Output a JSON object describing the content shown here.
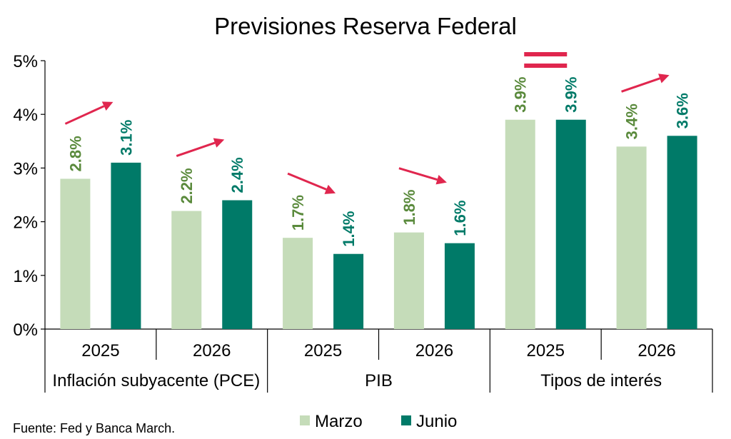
{
  "chart_data": {
    "type": "bar",
    "title": "Previsiones Reserva Federal",
    "ylim": [
      0,
      5
    ],
    "yticks": [
      "0%",
      "1%",
      "2%",
      "3%",
      "4%",
      "5%"
    ],
    "groups": [
      {
        "name": "Inflación subyacente (PCE)",
        "categories": [
          "2025",
          "2026"
        ]
      },
      {
        "name": "PIB",
        "categories": [
          "2025",
          "2026"
        ]
      },
      {
        "name": "Tipos de interés",
        "categories": [
          "2025",
          "2026"
        ]
      }
    ],
    "categories": [
      "2025",
      "2026",
      "2025",
      "2026",
      "2025",
      "2026"
    ],
    "series": [
      {
        "name": "Marzo",
        "color": "#c5dcb9",
        "label_color": "#5a8a3c",
        "values": [
          2.8,
          2.2,
          1.7,
          1.8,
          3.9,
          3.4
        ],
        "labels": [
          "2.8%",
          "2.2%",
          "1.7%",
          "1.8%",
          "3.9%",
          "3.4%"
        ]
      },
      {
        "name": "Junio",
        "color": "#007a68",
        "label_color": "#007a68",
        "values": [
          3.1,
          2.4,
          1.4,
          1.6,
          3.9,
          3.6
        ],
        "labels": [
          "3.1%",
          "2.4%",
          "1.4%",
          "1.6%",
          "3.9%",
          "3.6%"
        ]
      }
    ],
    "annotations": [
      {
        "category_index": 0,
        "symbol": "up-arrow"
      },
      {
        "category_index": 1,
        "symbol": "up-arrow"
      },
      {
        "category_index": 2,
        "symbol": "down-arrow"
      },
      {
        "category_index": 3,
        "symbol": "down-arrow"
      },
      {
        "category_index": 4,
        "symbol": "equal-sign"
      },
      {
        "category_index": 5,
        "symbol": "up-arrow"
      }
    ],
    "annotation_color": "#e0264e",
    "legend": "bottom-center",
    "grid": false
  },
  "source": "Fuente: Fed y Banca March."
}
